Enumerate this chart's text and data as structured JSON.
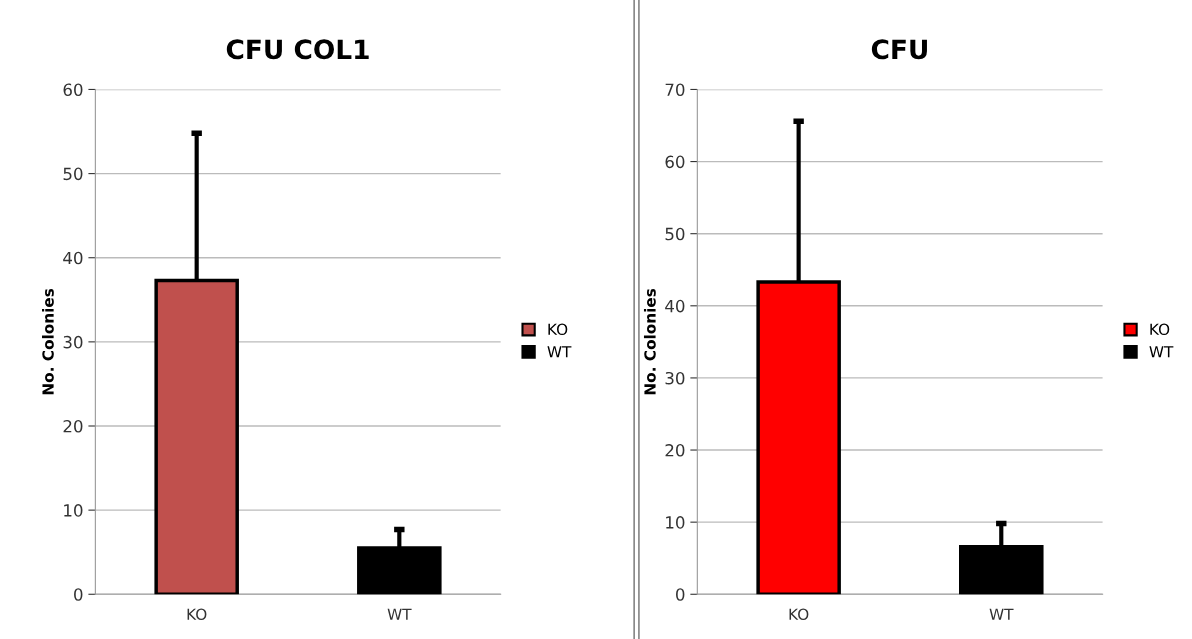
{
  "chart_data": [
    {
      "type": "bar",
      "title": "CFU COL1",
      "ylabel": "No. Colonies",
      "categories": [
        "KO",
        "WT"
      ],
      "series": [
        {
          "name": "KO",
          "color": "#c0504d",
          "values": [
            37.3,
            null
          ],
          "errors": [
            [
              37.3,
              54.8
            ],
            null
          ]
        },
        {
          "name": "WT",
          "color": "#000000",
          "values": [
            null,
            5.5
          ],
          "errors": [
            null,
            [
              5.5,
              7.7
            ]
          ]
        }
      ],
      "ylim": [
        0,
        60
      ],
      "yticks": [
        0,
        10,
        20,
        30,
        40,
        50,
        60
      ],
      "grid": "y",
      "legend": "right"
    },
    {
      "type": "bar",
      "title": "CFU",
      "ylabel": "No. Colonies",
      "categories": [
        "KO",
        "WT"
      ],
      "series": [
        {
          "name": "KO",
          "color": "#ff0000",
          "values": [
            43.3,
            null
          ],
          "errors": [
            [
              43.3,
              65.6
            ],
            null
          ]
        },
        {
          "name": "WT",
          "color": "#000000",
          "values": [
            null,
            6.6
          ],
          "errors": [
            null,
            [
              6.6,
              9.8
            ]
          ]
        }
      ],
      "ylim": [
        0,
        70
      ],
      "yticks": [
        0,
        10,
        20,
        30,
        40,
        50,
        60,
        70
      ],
      "grid": "y",
      "legend": "right"
    }
  ]
}
